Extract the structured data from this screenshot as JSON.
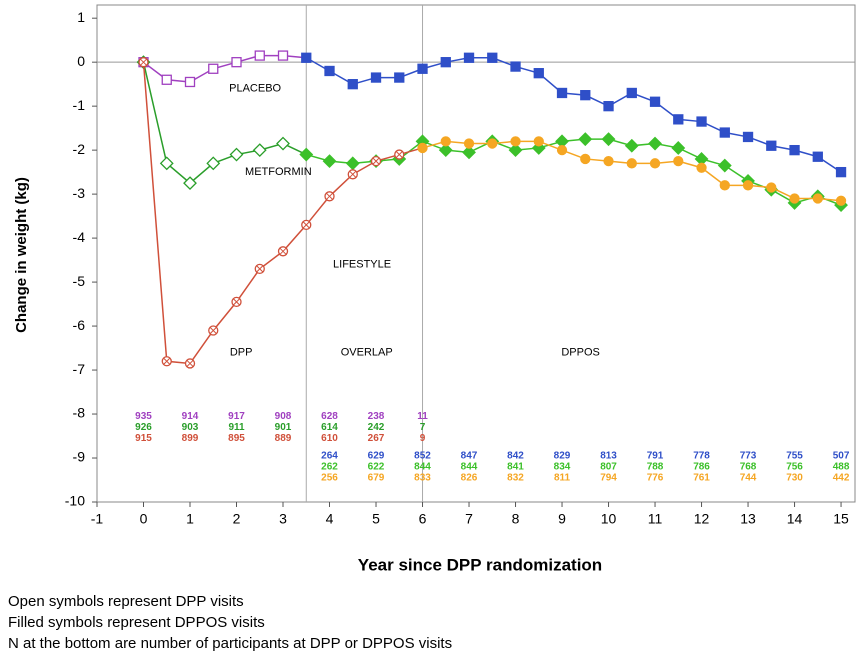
{
  "chart_data": {
    "type": "line",
    "x_label": "Year since DPP randomization",
    "y_label": "Change in weight (kg)",
    "x": [
      0,
      0.5,
      1,
      1.5,
      2,
      2.5,
      3,
      3.5,
      4,
      4.5,
      5,
      5.5,
      6,
      6.5,
      7,
      7.5,
      8,
      8.5,
      9,
      9.5,
      10,
      10.5,
      11,
      11.5,
      12,
      12.5,
      13,
      13.5,
      14,
      14.5,
      15
    ],
    "series": [
      {
        "name": "PLACEBO",
        "color": "#a040c0",
        "dppos_color": "#2f4fc8",
        "marker": "square",
        "filled_from": 3.5,
        "values": [
          0,
          -0.4,
          -0.45,
          -0.15,
          0,
          0.15,
          0.15,
          0.1,
          -0.2,
          -0.5,
          -0.35,
          -0.35,
          -0.15,
          0,
          0.1,
          0.1,
          -0.1,
          -0.25,
          -0.7,
          -0.75,
          -1.0,
          -0.7,
          -0.9,
          -1.3,
          -1.35,
          -1.6,
          -1.7,
          -1.9,
          -2.0,
          -2.15,
          -2.5
        ]
      },
      {
        "name": "METFORMIN",
        "color": "#2a9e2a",
        "dppos_color": "#3cc02a",
        "marker": "diamond",
        "filled_from": 3.5,
        "values": [
          0,
          -2.3,
          -2.75,
          -2.3,
          -2.1,
          -2.0,
          -1.85,
          -2.1,
          -2.25,
          -2.3,
          -2.25,
          -2.2,
          -1.8,
          -2.0,
          -2.05,
          -1.8,
          -2.0,
          -1.95,
          -1.8,
          -1.75,
          -1.75,
          -1.9,
          -1.85,
          -1.95,
          -2.2,
          -2.35,
          -2.7,
          -2.9,
          -3.2,
          -3.05,
          -3.25
        ]
      },
      {
        "name": "LIFESTYLE",
        "color": "#d0503a",
        "dppos_color": "#f5a623",
        "marker": "circle",
        "filled_from": 6,
        "values": [
          0,
          -6.8,
          -6.85,
          -6.1,
          -5.45,
          -4.7,
          -4.3,
          -3.7,
          -3.05,
          -2.55,
          -2.25,
          -2.1,
          -1.95,
          -1.8,
          -1.85,
          -1.85,
          -1.8,
          -1.8,
          -2.0,
          -2.2,
          -2.25,
          -2.3,
          -2.3,
          -2.25,
          -2.4,
          -2.8,
          -2.8,
          -2.85,
          -3.1,
          -3.1,
          -3.15
        ]
      }
    ],
    "annotations": [
      "DPP",
      "OVERLAP",
      "DPPOS"
    ],
    "period_boundaries": [
      3.5,
      6
    ],
    "xlim": [
      -1,
      15.3
    ],
    "ylim": [
      -10,
      1.3
    ],
    "xticks": [
      -1,
      0,
      1,
      2,
      3,
      4,
      5,
      6,
      7,
      8,
      9,
      10,
      11,
      12,
      13,
      14,
      15
    ],
    "yticks": [
      1,
      0,
      -1,
      -2,
      -3,
      -4,
      -5,
      -6,
      -7,
      -8,
      -9,
      -10
    ],
    "n_dpp": {
      "x": [
        0,
        1,
        2,
        3,
        4,
        5,
        6
      ],
      "rows": [
        {
          "color": "#a040c0",
          "values": [
            "935",
            "914",
            "917",
            "908",
            "628",
            "238",
            "11"
          ]
        },
        {
          "color": "#2a9e2a",
          "values": [
            "926",
            "903",
            "911",
            "901",
            "614",
            "242",
            "7"
          ]
        },
        {
          "color": "#d0503a",
          "values": [
            "915",
            "899",
            "895",
            "889",
            "610",
            "267",
            "9"
          ]
        }
      ]
    },
    "n_dppos": {
      "x": [
        4,
        5,
        6,
        7,
        8,
        9,
        10,
        11,
        12,
        13,
        14,
        15
      ],
      "rows": [
        {
          "color": "#2f4fc8",
          "values": [
            "264",
            "629",
            "852",
            "847",
            "842",
            "829",
            "813",
            "791",
            "778",
            "773",
            "755",
            "507"
          ]
        },
        {
          "color": "#3cc02a",
          "values": [
            "262",
            "622",
            "844",
            "844",
            "841",
            "834",
            "807",
            "788",
            "786",
            "768",
            "756",
            "488"
          ]
        },
        {
          "color": "#f5a623",
          "values": [
            "256",
            "679",
            "833",
            "826",
            "832",
            "811",
            "794",
            "776",
            "761",
            "744",
            "730",
            "442"
          ]
        }
      ]
    }
  },
  "footnotes": [
    "Open symbols represent DPP visits",
    "Filled symbols represent DPPOS visits",
    "N at the bottom are number of participants at DPP or DPPOS visits"
  ]
}
